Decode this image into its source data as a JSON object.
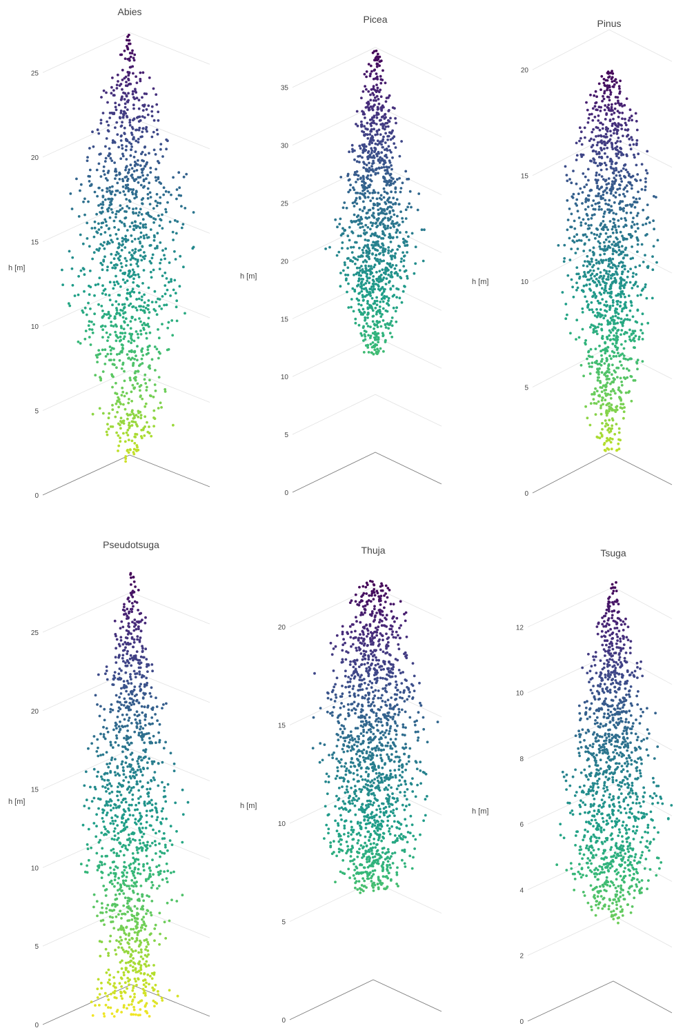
{
  "colors": {
    "colorscale": [
      "#fde725",
      "#b5de2b",
      "#6ece58",
      "#35b779",
      "#1f9e89",
      "#26828e",
      "#31688e",
      "#3e4989",
      "#482878",
      "#440154"
    ],
    "grid_line": "#e2e2e2",
    "axis_line": "#7a7a7a",
    "text": "#444444"
  },
  "chart_data": [
    {
      "type": "scatter",
      "title": "Abies",
      "ylabel": "h [m]",
      "ylim": [
        0,
        27.5
      ],
      "yticks": [
        "0",
        "5",
        "10",
        "15",
        "20",
        "25"
      ],
      "tick_values": [
        0,
        5,
        10,
        15,
        20,
        25
      ],
      "grid": true,
      "profile": [
        [
          1.0,
          0.06
        ],
        [
          2.0,
          0.08
        ],
        [
          4.5,
          0.66
        ],
        [
          5.5,
          0.5
        ],
        [
          7.0,
          0.6
        ],
        [
          9.0,
          0.78
        ],
        [
          11.0,
          0.88
        ],
        [
          13.0,
          0.95
        ],
        [
          15.0,
          1.0
        ],
        [
          17.0,
          0.92
        ],
        [
          19.0,
          0.86
        ],
        [
          21.0,
          0.7
        ],
        [
          23.0,
          0.5
        ],
        [
          25.0,
          0.32
        ],
        [
          27.4,
          0.05
        ]
      ]
    },
    {
      "type": "scatter",
      "title": "Picea",
      "ylabel": "h [m]",
      "ylim": [
        0,
        38.5
      ],
      "yticks": [
        "0",
        "5",
        "10",
        "15",
        "20",
        "25",
        "30",
        "35"
      ],
      "tick_values": [
        0,
        5,
        10,
        15,
        20,
        25,
        30,
        35
      ],
      "grid": true,
      "profile": [
        [
          12.0,
          0.25
        ],
        [
          15.0,
          0.55
        ],
        [
          18.0,
          0.78
        ],
        [
          21.0,
          1.0
        ],
        [
          24.0,
          0.95
        ],
        [
          27.0,
          0.82
        ],
        [
          30.0,
          0.62
        ],
        [
          33.0,
          0.42
        ],
        [
          36.0,
          0.26
        ],
        [
          38.3,
          0.05
        ]
      ]
    },
    {
      "type": "scatter",
      "title": "Pinus",
      "ylabel": "h [m]",
      "ylim": [
        0,
        20.2
      ],
      "yticks": [
        "0",
        "5",
        "10",
        "15",
        "20"
      ],
      "tick_values": [
        0,
        5,
        10,
        15,
        20
      ],
      "grid": true,
      "profile": [
        [
          2.0,
          0.25
        ],
        [
          4.0,
          0.45
        ],
        [
          6.0,
          0.7
        ],
        [
          8.0,
          0.82
        ],
        [
          10.0,
          0.95
        ],
        [
          12.0,
          1.0
        ],
        [
          14.0,
          0.95
        ],
        [
          16.0,
          0.8
        ],
        [
          18.0,
          0.6
        ],
        [
          19.0,
          0.42
        ],
        [
          20.0,
          0.1
        ]
      ]
    },
    {
      "type": "scatter",
      "title": "Pseudotsuga",
      "ylabel": "h [m]",
      "ylim": [
        0,
        29.0
      ],
      "yticks": [
        "0",
        "5",
        "10",
        "15",
        "20",
        "25"
      ],
      "tick_values": [
        0,
        5,
        10,
        15,
        20,
        25
      ],
      "grid": true,
      "profile": [
        [
          0.5,
          0.72
        ],
        [
          2.0,
          0.85
        ],
        [
          4.0,
          0.55
        ],
        [
          6.0,
          0.7
        ],
        [
          8.0,
          0.88
        ],
        [
          10.0,
          0.95
        ],
        [
          12.0,
          0.96
        ],
        [
          14.0,
          1.0
        ],
        [
          16.0,
          0.92
        ],
        [
          18.0,
          0.82
        ],
        [
          20.0,
          0.72
        ],
        [
          22.0,
          0.58
        ],
        [
          24.0,
          0.45
        ],
        [
          26.0,
          0.3
        ],
        [
          28.8,
          0.05
        ]
      ]
    },
    {
      "type": "scatter",
      "title": "Thuja",
      "ylabel": "h [m]",
      "ylim": [
        0,
        22.5
      ],
      "yticks": [
        "0",
        "5",
        "10",
        "15",
        "20"
      ],
      "tick_values": [
        0,
        5,
        10,
        15,
        20
      ],
      "grid": true,
      "profile": [
        [
          6.5,
          0.45
        ],
        [
          8.0,
          0.75
        ],
        [
          10.0,
          0.95
        ],
        [
          12.0,
          1.0
        ],
        [
          14.0,
          1.0
        ],
        [
          16.0,
          0.98
        ],
        [
          18.0,
          0.82
        ],
        [
          20.0,
          0.62
        ],
        [
          21.5,
          0.45
        ],
        [
          22.4,
          0.3
        ]
      ]
    },
    {
      "type": "scatter",
      "title": "Tsuga",
      "ylabel": "h [m]",
      "ylim": [
        0,
        13.5
      ],
      "yticks": [
        "0",
        "2",
        "4",
        "6",
        "8",
        "10",
        "12"
      ],
      "tick_values": [
        0,
        2,
        4,
        6,
        8,
        10,
        12
      ],
      "grid": true,
      "profile": [
        [
          3.0,
          0.2
        ],
        [
          4.0,
          0.8
        ],
        [
          5.0,
          0.95
        ],
        [
          6.0,
          1.0
        ],
        [
          7.0,
          0.98
        ],
        [
          8.0,
          0.9
        ],
        [
          9.0,
          0.8
        ],
        [
          10.0,
          0.68
        ],
        [
          11.0,
          0.52
        ],
        [
          12.0,
          0.35
        ],
        [
          13.4,
          0.05
        ]
      ]
    }
  ]
}
